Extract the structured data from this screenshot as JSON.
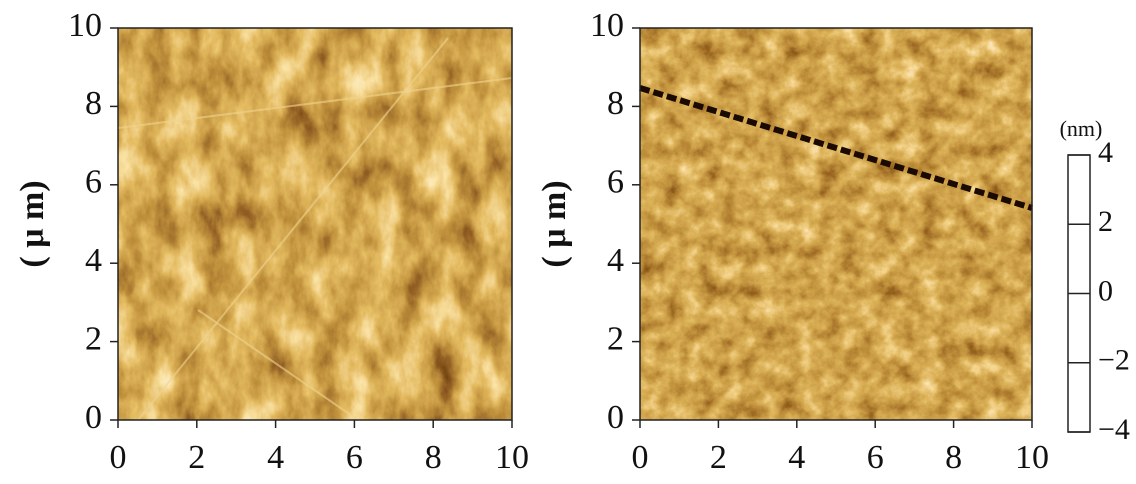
{
  "chart_data": [
    {
      "type": "image",
      "ylabel": "( μ m)",
      "xlim": [
        0,
        10
      ],
      "ylim": [
        0,
        10
      ],
      "xticks": [
        0,
        2,
        4,
        6,
        8,
        10
      ],
      "yticks": [
        0,
        2,
        4,
        6,
        8,
        10
      ]
    },
    {
      "type": "image",
      "ylabel": "( μ m)",
      "xlim": [
        0,
        10
      ],
      "ylim": [
        0,
        10
      ],
      "xticks": [
        0,
        2,
        4,
        6,
        8,
        10
      ],
      "yticks": [
        0,
        2,
        4,
        6,
        8,
        10
      ],
      "colorbar": {
        "label": "(nm)",
        "lim": [
          -4,
          4
        ],
        "ticks": [
          {
            "value": -4,
            "label": "−4"
          },
          {
            "value": -2,
            "label": "−2"
          },
          0,
          2,
          4
        ],
        "colors": [
          "#000000",
          "#4a1f05",
          "#9a5a10",
          "#d9a640",
          "#ffffff"
        ]
      }
    }
  ]
}
